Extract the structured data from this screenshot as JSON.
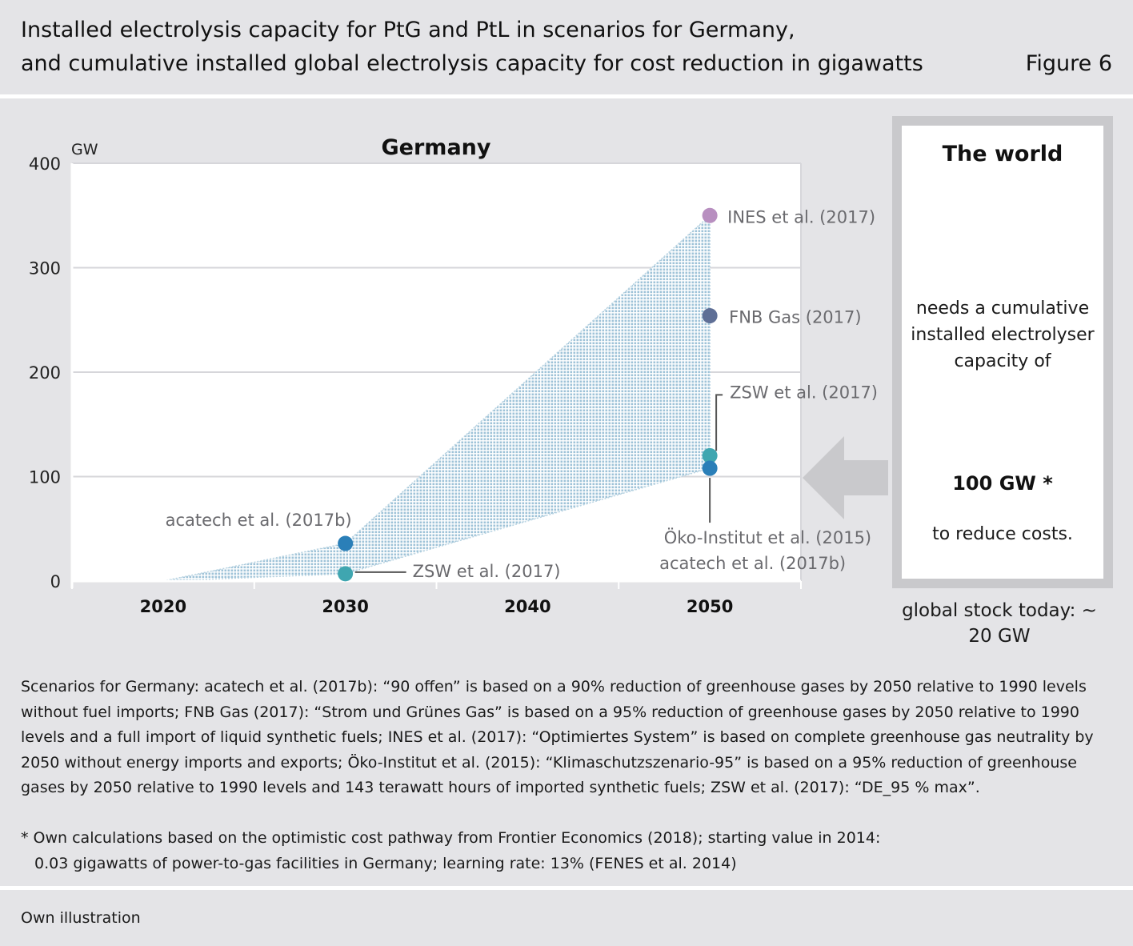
{
  "header": {
    "title_line1": "Installed electrolysis capacity for PtG and PtL in scenarios for Germany,",
    "title_line2": "and cumulative installed global electrolysis capacity for cost reduction in gigawatts",
    "figure_label": "Figure 6"
  },
  "colors": {
    "background": "#e4e4e7",
    "plot_area": "#ffffff",
    "range_fill": "#9fc3d8",
    "ines": "#b88fc0",
    "fnb": "#5f6f96",
    "zsw": "#3fa6b0",
    "acatech": "#2a7fb8",
    "arrow": "#c9c9cc"
  },
  "chart_data": {
    "type": "scatter",
    "title": "Germany",
    "ylabel": "GW",
    "xlabel": "",
    "ylim": [
      0,
      400
    ],
    "xlim": [
      2015,
      2055
    ],
    "y_ticks": [
      "0",
      "100",
      "200",
      "300",
      "400"
    ],
    "x_ticks": [
      "2020",
      "2030",
      "2040",
      "2050"
    ],
    "grid": true,
    "range_band": {
      "upper": [
        [
          2020,
          0
        ],
        [
          2030,
          36
        ],
        [
          2050,
          350
        ]
      ],
      "lower": [
        [
          2020,
          0
        ],
        [
          2030,
          7
        ],
        [
          2050,
          108
        ]
      ]
    },
    "points": [
      {
        "x": 2030,
        "y": 36,
        "label": "acatech et al. (2017b)",
        "color": "#2a7fb8"
      },
      {
        "x": 2030,
        "y": 7,
        "label": "ZSW et al. (2017)",
        "color": "#3fa6b0"
      },
      {
        "x": 2050,
        "y": 350,
        "label": "INES et al. (2017)",
        "color": "#b88fc0"
      },
      {
        "x": 2050,
        "y": 254,
        "label": "FNB Gas (2017)",
        "color": "#5f6f96"
      },
      {
        "x": 2050,
        "y": 120,
        "label": "ZSW et al. (2017)",
        "color": "#3fa6b0"
      },
      {
        "x": 2050,
        "y": 108,
        "label": "Öko-Institut et al. (2015)",
        "label2": "acatech et al. (2017b)",
        "color": "#2a7fb8"
      }
    ]
  },
  "world": {
    "title": "The world",
    "text": "needs a cumulative installed electrolyser capacity of",
    "value": "100 GW *",
    "subtext": "to reduce costs.",
    "global_stock": "global stock today: ~ 20 GW"
  },
  "notes": {
    "scenarios": "Scenarios for Germany: acatech et al. (2017b): “90 offen” is based on a 90% reduction of greenhouse gases by 2050 relative to 1990 levels without fuel imports; FNB Gas (2017): “Strom und Grünes Gas” is based on a 95% reduction of greenhouse gases by 2050 relative to 1990 levels and a full import of liquid synthetic fuels; INES et al. (2017): “Optimiertes System” is based on complete greenhouse gas neutrality by 2050 without energy imports and exports; Öko-Institut et al. (2015): “Klimaschutzszenario-95” is based on a 95% reduction of greenhouse gases by 2050 relative to 1990 levels and 143 terawatt hours of imported synthetic fuels; ZSW et al. (2017): “DE_95 % max”.",
    "star_line1": "* Own calculations based on the optimistic cost pathway from Frontier Economics (2018); starting value in 2014:",
    "star_line2": "0.03 gigawatts of power-to-gas facilities in Germany; learning rate: 13% (FENES et al. 2014)"
  },
  "footer": {
    "source": "Own illustration"
  }
}
